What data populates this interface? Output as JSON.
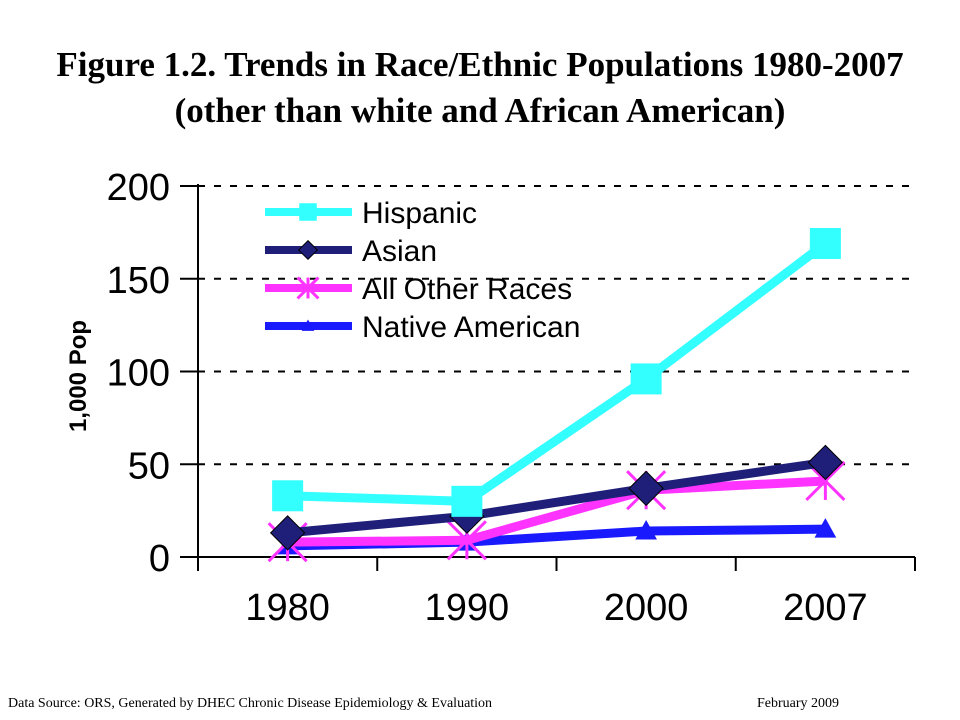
{
  "title": {
    "line1": "Figure 1.2. Trends in Race/Ethnic Populations 1980-2007",
    "line2": "(other than white and African American)"
  },
  "footer": {
    "source": "Data Source: ORS,  Generated by DHEC Chronic Disease Epidemiology & Evaluation",
    "date": "February 2009"
  },
  "chart_data": {
    "type": "line",
    "title": "Figure 1.2. Trends in Race/Ethnic Populations 1980-2007 (other than white and African American)",
    "xlabel": "",
    "ylabel": "1,000 Pop",
    "categories": [
      "1980",
      "1990",
      "2000",
      "2007"
    ],
    "ylim": [
      0,
      200
    ],
    "yticks": [
      0,
      50,
      100,
      150,
      200
    ],
    "grid": "horizontal dashed",
    "legend": "top-left",
    "series": [
      {
        "name": "Hispanic",
        "values": [
          33,
          30,
          96,
          169
        ],
        "color": "#33FFFF",
        "marker": "square"
      },
      {
        "name": "Asian",
        "values": [
          13,
          22,
          37,
          51
        ],
        "color": "#1F1F7A",
        "marker": "diamond"
      },
      {
        "name": "All Other Races",
        "values": [
          8,
          9,
          36,
          41
        ],
        "color": "#FF33FF",
        "marker": "asterisk"
      },
      {
        "name": "Native American",
        "values": [
          6,
          8,
          14,
          15
        ],
        "color": "#1A1AFF",
        "marker": "triangle"
      }
    ]
  }
}
